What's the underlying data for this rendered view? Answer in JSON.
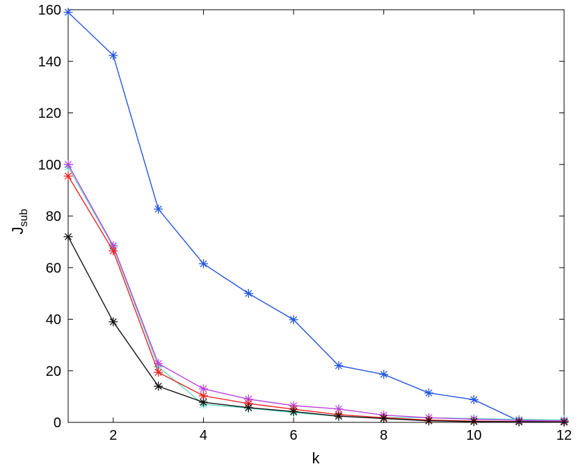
{
  "chart_data": {
    "type": "line",
    "title": "",
    "xlabel": "k",
    "ylabel_main": "J",
    "ylabel_sub": "sub",
    "xlim": [
      1,
      12
    ],
    "ylim": [
      0,
      160
    ],
    "xticks": [
      2,
      4,
      6,
      8,
      10,
      12
    ],
    "yticks": [
      0,
      20,
      40,
      60,
      80,
      100,
      120,
      140,
      160
    ],
    "grid": false,
    "legend": "none",
    "marker": "asterisk",
    "x": [
      1,
      2,
      3,
      4,
      5,
      6,
      7,
      8,
      9,
      10,
      11,
      12
    ],
    "series": [
      {
        "color": "#2255dd",
        "values": [
          159,
          142.3,
          82.7,
          61.5,
          50,
          39.8,
          22,
          18.6,
          11.4,
          8.8,
          0.5,
          0.4
        ]
      },
      {
        "color": "#66e0c8",
        "values": [
          99,
          68,
          21.5,
          7,
          5.5,
          3.8,
          2.3,
          1.9,
          1.8,
          1.5,
          1.2,
          1.0
        ]
      },
      {
        "color": "#bb44dd",
        "values": [
          100,
          68.5,
          22.8,
          13,
          9,
          6.5,
          5.2,
          2.8,
          1.8,
          1.2,
          0.8,
          0.6
        ]
      },
      {
        "color": "#ee2222",
        "values": [
          95.5,
          66.5,
          19.4,
          10.3,
          7.3,
          5.1,
          3.0,
          1.8,
          0.9,
          0.5,
          0.3,
          0.2
        ]
      },
      {
        "color": "#111111",
        "values": [
          72,
          39,
          14,
          7.8,
          5.7,
          4.2,
          2.4,
          1.5,
          0.6,
          0.3,
          0.2,
          0.1
        ]
      }
    ]
  }
}
